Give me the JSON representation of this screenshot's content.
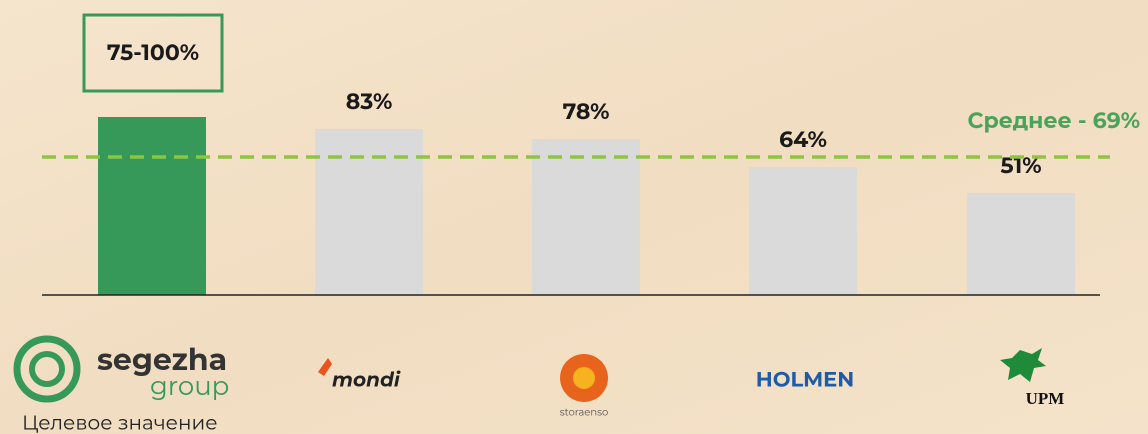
{
  "chart_data": {
    "type": "bar",
    "categories": [
      "segezha group",
      "mondi",
      "storaenso",
      "HOLMEN",
      "UPM"
    ],
    "values": [
      89,
      83,
      78,
      64,
      51
    ],
    "value_labels": [
      null,
      "83%",
      "78%",
      "64%",
      "51%"
    ],
    "target_label": "75-100%",
    "colors": [
      "#36995a",
      "#dadada",
      "#dadada",
      "#dadada",
      "#dadada"
    ],
    "ylim": [
      0,
      100
    ],
    "average": {
      "value": 69,
      "label": "Среднее - 69%",
      "color": "#8cc63f"
    },
    "caption": "Целевое значение"
  }
}
